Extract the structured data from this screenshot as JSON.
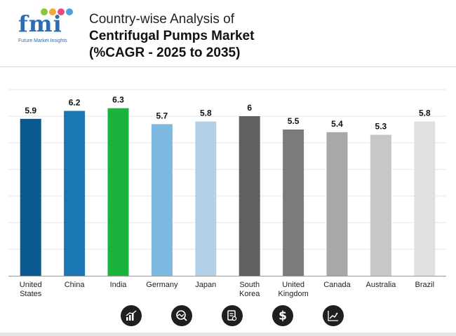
{
  "header": {
    "logo_text": "fmi",
    "logo_subtext": "Future Market Insights",
    "title_line1": "Country-wise Analysis of",
    "title_line2": "Centrifugal Pumps Market",
    "title_line3": "(%CAGR - 2025 to 2035)"
  },
  "colors": {
    "logo_blue": "#2e6db4",
    "logo_dots": [
      "#8ac53f",
      "#f2a73b",
      "#e84c7b",
      "#4aa3df"
    ]
  },
  "footer_icons": [
    "bar-chart-icon",
    "trend-analysis-icon",
    "report-document-icon",
    "dollar-icon",
    "growth-chart-icon"
  ],
  "chart_data": {
    "type": "bar",
    "categories": [
      [
        "United",
        "States"
      ],
      [
        "China"
      ],
      [
        "India"
      ],
      [
        "Germany"
      ],
      [
        "Japan"
      ],
      [
        "South",
        "Korea"
      ],
      [
        "United",
        "Kingdom"
      ],
      [
        "Canada"
      ],
      [
        "Australia"
      ],
      [
        "Brazil"
      ]
    ],
    "values": [
      5.9,
      6.2,
      6.3,
      5.7,
      5.8,
      6,
      5.5,
      5.4,
      5.3,
      5.8
    ],
    "value_labels": [
      "5.9",
      "6.2",
      "6.3",
      "5.7",
      "5.8",
      "6",
      "5.5",
      "5.4",
      "5.3",
      "5.8"
    ],
    "bar_colors": [
      "#0b5a8f",
      "#1b76b4",
      "#1ab33b",
      "#7cb8e0",
      "#b2d0e6",
      "#606060",
      "#7b7b7b",
      "#a8a8a8",
      "#c7c7c7",
      "#e0e0e0"
    ],
    "ylim": [
      0,
      7
    ],
    "grid": true,
    "title": "",
    "xlabel": "",
    "ylabel": ""
  }
}
